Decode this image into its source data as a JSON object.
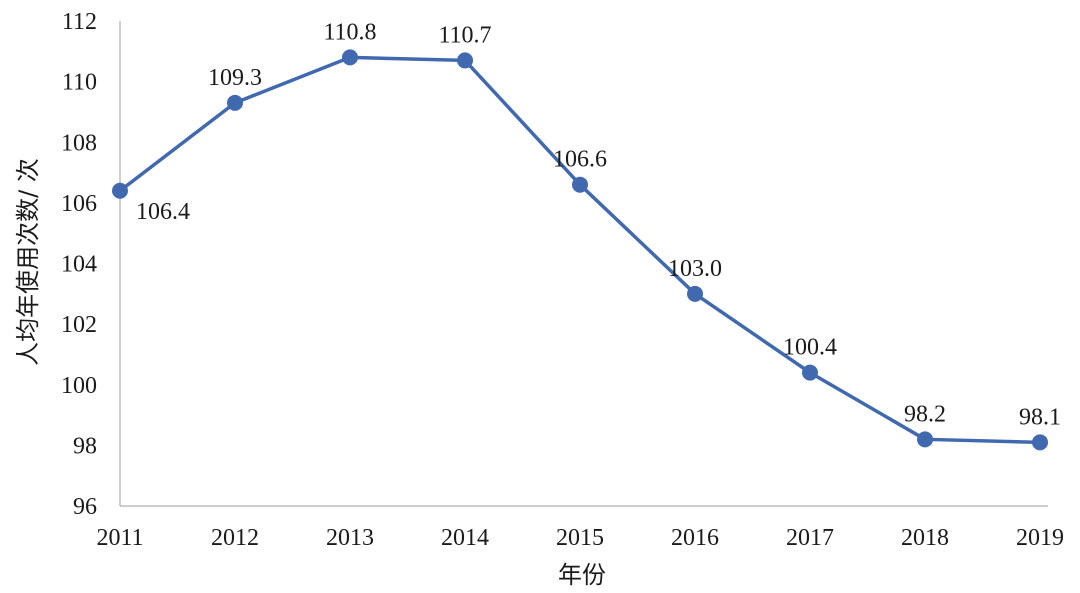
{
  "chart_data": {
    "type": "line",
    "xlabel": "年份",
    "ylabel": "人均年使用次数/ 次",
    "categories": [
      "2011",
      "2012",
      "2013",
      "2014",
      "2015",
      "2016",
      "2017",
      "2018",
      "2019"
    ],
    "series": [
      {
        "values": [
          106.4,
          109.3,
          110.8,
          110.7,
          106.6,
          103.0,
          100.4,
          98.2,
          98.1
        ],
        "labels": [
          "106.4",
          "109.3",
          "110.8",
          "110.7",
          "106.6",
          "103.0",
          "100.4",
          "98.2",
          "98.1"
        ]
      }
    ],
    "ylim": [
      96,
      112
    ],
    "yticks": [
      "96",
      "98",
      "100",
      "102",
      "104",
      "106",
      "108",
      "110",
      "112"
    ],
    "grid": false,
    "legend": "none",
    "colors": {
      "series": "#4169b0",
      "axis": "#b0b0b0",
      "text": "#1a1a1a"
    }
  }
}
